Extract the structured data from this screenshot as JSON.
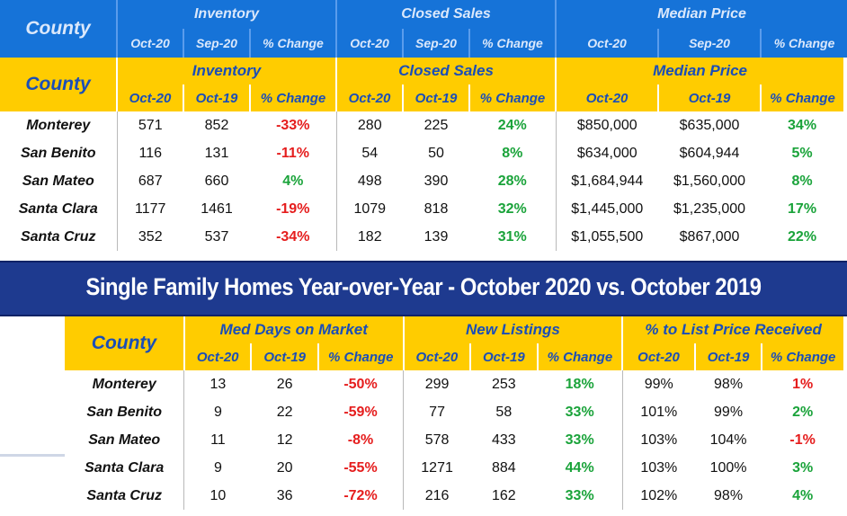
{
  "blue_header": {
    "county_label": "County",
    "groups": [
      "Inventory",
      "Closed Sales",
      "Median Price"
    ],
    "subheaders": [
      "Oct-20",
      "Sep-20",
      "% Change",
      "Oct-20",
      "Sep-20",
      "% Change",
      "Oct-20",
      "Sep-20",
      "% Change"
    ]
  },
  "top_table": {
    "county_label": "County",
    "groups": [
      "Inventory",
      "Closed Sales",
      "Median Price"
    ],
    "subheaders": [
      "Oct-20",
      "Oct-19",
      "% Change",
      "Oct-20",
      "Oct-19",
      "% Change",
      "Oct-20",
      "Oct-19",
      "% Change"
    ],
    "rows": [
      {
        "county": "Monterey",
        "inv_oct20": "571",
        "inv_oct19": "852",
        "inv_chg": "-33%",
        "cs_oct20": "280",
        "cs_oct19": "225",
        "cs_chg": "24%",
        "mp_oct20": "$850,000",
        "mp_oct19": "$635,000",
        "mp_chg": "34%"
      },
      {
        "county": "San Benito",
        "inv_oct20": "116",
        "inv_oct19": "131",
        "inv_chg": "-11%",
        "cs_oct20": "54",
        "cs_oct19": "50",
        "cs_chg": "8%",
        "mp_oct20": "$634,000",
        "mp_oct19": "$604,944",
        "mp_chg": "5%"
      },
      {
        "county": "San Mateo",
        "inv_oct20": "687",
        "inv_oct19": "660",
        "inv_chg": "4%",
        "cs_oct20": "498",
        "cs_oct19": "390",
        "cs_chg": "28%",
        "mp_oct20": "$1,684,944",
        "mp_oct19": "$1,560,000",
        "mp_chg": "8%"
      },
      {
        "county": "Santa Clara",
        "inv_oct20": "1177",
        "inv_oct19": "1461",
        "inv_chg": "-19%",
        "cs_oct20": "1079",
        "cs_oct19": "818",
        "cs_chg": "32%",
        "mp_oct20": "$1,445,000",
        "mp_oct19": "$1,235,000",
        "mp_chg": "17%"
      },
      {
        "county": "Santa Cruz",
        "inv_oct20": "352",
        "inv_oct19": "537",
        "inv_chg": "-34%",
        "cs_oct20": "182",
        "cs_oct19": "139",
        "cs_chg": "31%",
        "mp_oct20": "$1,055,500",
        "mp_oct19": "$867,000",
        "mp_chg": "22%"
      }
    ]
  },
  "banner": {
    "title": "Single Family Homes Year-over-Year - October 2020 vs. October 2019"
  },
  "bottom_table": {
    "county_label": "County",
    "groups": [
      "Med Days on Market",
      "New Listings",
      "% to List Price Received"
    ],
    "subheaders": [
      "Oct-20",
      "Oct-19",
      "% Change",
      "Oct-20",
      "Oct-19",
      "% Change",
      "Oct-20",
      "Oct-19",
      "% Change"
    ],
    "rows": [
      {
        "county": "Monterey",
        "dom_oct20": "13",
        "dom_oct19": "26",
        "dom_chg": "-50%",
        "nl_oct20": "299",
        "nl_oct19": "253",
        "nl_chg": "18%",
        "lp_oct20": "99%",
        "lp_oct19": "98%",
        "lp_chg": "1%"
      },
      {
        "county": "San Benito",
        "dom_oct20": "9",
        "dom_oct19": "22",
        "dom_chg": "-59%",
        "nl_oct20": "77",
        "nl_oct19": "58",
        "nl_chg": "33%",
        "lp_oct20": "101%",
        "lp_oct19": "99%",
        "lp_chg": "2%"
      },
      {
        "county": "San Mateo",
        "dom_oct20": "11",
        "dom_oct19": "12",
        "dom_chg": "-8%",
        "nl_oct20": "578",
        "nl_oct19": "433",
        "nl_chg": "33%",
        "lp_oct20": "103%",
        "lp_oct19": "104%",
        "lp_chg": "-1%"
      },
      {
        "county": "Santa Clara",
        "dom_oct20": "9",
        "dom_oct19": "20",
        "dom_chg": "-55%",
        "nl_oct20": "1271",
        "nl_oct19": "884",
        "nl_chg": "44%",
        "lp_oct20": "103%",
        "lp_oct19": "100%",
        "lp_chg": "3%"
      },
      {
        "county": "Santa Cruz",
        "dom_oct20": "10",
        "dom_oct19": "36",
        "dom_chg": "-72%",
        "nl_oct20": "216",
        "nl_oct19": "162",
        "nl_chg": "33%",
        "lp_oct20": "102%",
        "lp_oct19": "98%",
        "lp_chg": "4%"
      }
    ]
  },
  "colors": {
    "header_yellow": "#ffcc00",
    "header_text_blue": "#1a4eb8",
    "strip_blue": "#1673d8",
    "banner_navy": "#1e3a8f",
    "negative_red": "#e51d1d",
    "positive_green": "#1aa33a"
  }
}
